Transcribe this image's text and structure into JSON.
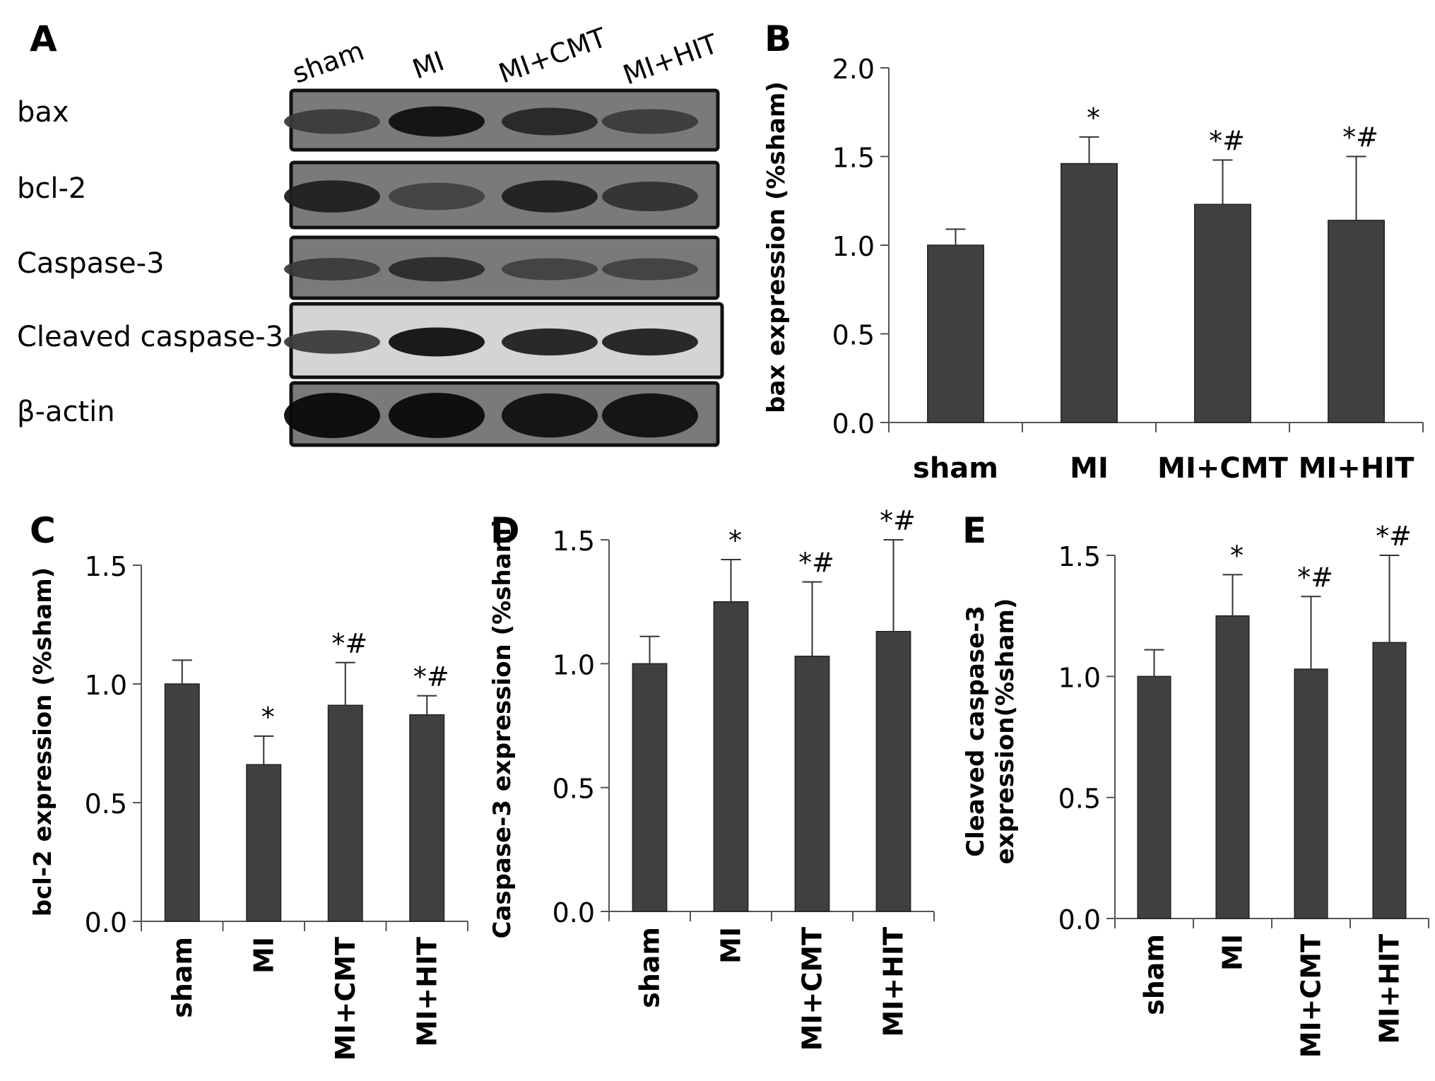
{
  "panel_letters": [
    "A",
    "B",
    "C",
    "D",
    "E"
  ],
  "western_blot": {
    "lanes": [
      "sham",
      "MI",
      "MI+CMT",
      "MI+HIT"
    ],
    "rows": [
      {
        "label": "bax",
        "band_intensity": [
          0.55,
          0.95,
          0.75,
          0.55
        ]
      },
      {
        "label": "bcl-2",
        "band_intensity": [
          0.8,
          0.5,
          0.8,
          0.65
        ]
      },
      {
        "label": "Caspase-3",
        "band_intensity": [
          0.55,
          0.7,
          0.5,
          0.5
        ]
      },
      {
        "label": "Cleaved caspase-3",
        "band_intensity": [
          0.55,
          0.95,
          0.8,
          0.8
        ]
      },
      {
        "label": "β-actin",
        "band_intensity": [
          1.0,
          1.0,
          0.95,
          0.95
        ]
      }
    ]
  },
  "chart_data": [
    {
      "panel": "B",
      "type": "bar",
      "categories": [
        "sham",
        "MI",
        "MI+CMT",
        "MI+HIT"
      ],
      "values": [
        1.0,
        1.46,
        1.23,
        1.14
      ],
      "error": [
        0.09,
        0.15,
        0.25,
        0.36
      ],
      "annotations": [
        "",
        "*",
        "*#",
        "*#"
      ],
      "ylabel": "bax expression (%sham)",
      "ylim": [
        0,
        2.0
      ],
      "yticks": [
        "0.0",
        "0.5",
        "1.0",
        "1.5",
        "2.0"
      ],
      "bar_color": "#404040"
    },
    {
      "panel": "C",
      "type": "bar",
      "categories": [
        "sham",
        "MI",
        "MI+CMT",
        "MI+HIT"
      ],
      "values": [
        1.0,
        0.66,
        0.91,
        0.87
      ],
      "error": [
        0.1,
        0.12,
        0.18,
        0.08
      ],
      "annotations": [
        "",
        "*",
        "*#",
        "*#"
      ],
      "ylabel": "bcl-2 expression (%sham)",
      "ylim": [
        0,
        1.5
      ],
      "yticks": [
        "0.0",
        "0.5",
        "1.0",
        "1.5"
      ],
      "bar_color": "#404040"
    },
    {
      "panel": "D",
      "type": "bar",
      "categories": [
        "sham",
        "MI",
        "MI+CMT",
        "MI+HIT"
      ],
      "values": [
        1.0,
        1.25,
        1.03,
        1.13
      ],
      "error": [
        0.11,
        0.17,
        0.3,
        0.37
      ],
      "annotations": [
        "",
        "*",
        "*#",
        "*#"
      ],
      "ylabel": "Caspase-3  expression (%sham)",
      "ylim": [
        0,
        1.5
      ],
      "yticks": [
        "0.0",
        "0.5",
        "1.0",
        "1.5"
      ],
      "bar_color": "#404040"
    },
    {
      "panel": "E",
      "type": "bar",
      "categories": [
        "sham",
        "MI",
        "MI+CMT",
        "MI+HIT"
      ],
      "values": [
        1.0,
        1.25,
        1.03,
        1.14
      ],
      "error": [
        0.11,
        0.17,
        0.3,
        0.36
      ],
      "annotations": [
        "",
        "*",
        "*#",
        "*#"
      ],
      "ylabel": [
        "Cleaved caspase-3",
        "expression(%sham)"
      ],
      "ylim": [
        0,
        1.5
      ],
      "yticks": [
        "0.0",
        "0.5",
        "1.0",
        "1.5"
      ],
      "bar_color": "#404040"
    }
  ]
}
